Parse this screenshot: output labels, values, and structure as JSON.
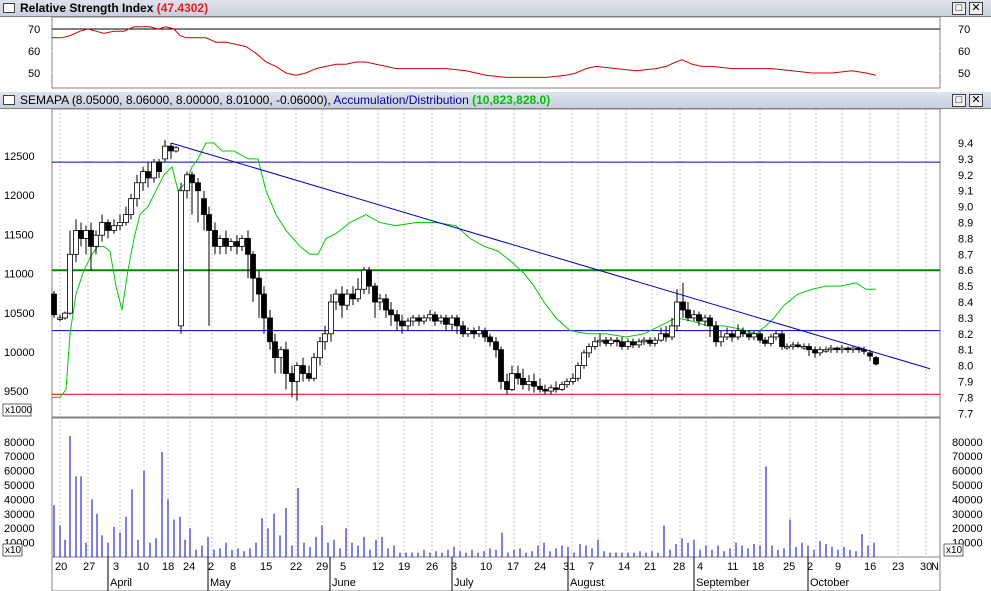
{
  "rsi": {
    "title": "Relative Strength Index",
    "value": "(47.4302)",
    "value_color": "#e02020",
    "left_ticks": [
      "70",
      "60",
      "50"
    ],
    "right_ticks": [
      "70",
      "60",
      "50"
    ]
  },
  "main": {
    "symbol": "SEMAPA",
    "ohlc": "(8.05000, 8.06000, 8.00000, 8.01000, -0.06000),",
    "indicator": "Accumulation/Distribution",
    "indicator_value": "(10,823,828.0)",
    "indicator_color": "#00c000",
    "left_ticks": [
      "12500",
      "12000",
      "11500",
      "11000",
      "10500",
      "10000",
      "9500"
    ],
    "left_multiplier": "x1000",
    "right_ticks": [
      "9.4",
      "9.3",
      "9.2",
      "9.1",
      "9.0",
      "8.9",
      "8.8",
      "8.7",
      "8.6",
      "8.5",
      "8.4",
      "8.3",
      "8.2",
      "8.1",
      "8.0",
      "7.9",
      "7.8",
      "7.7"
    ],
    "hlines": {
      "blue_top": 9.28,
      "green": 8.6,
      "blue_low": 8.22,
      "red": 7.82
    }
  },
  "volume": {
    "left_ticks": [
      "80000",
      "70000",
      "60000",
      "50000",
      "40000",
      "30000",
      "20000",
      "10000"
    ],
    "right_ticks": [
      "80000",
      "70000",
      "60000",
      "50000",
      "40000",
      "30000",
      "20000",
      "10000"
    ],
    "multiplier": "x10"
  },
  "xaxis": {
    "days": [
      "20",
      "27",
      "3",
      "10",
      "18",
      "24",
      "2",
      "8",
      "15",
      "22",
      "29",
      "5",
      "12",
      "19",
      "26",
      "3",
      "10",
      "17",
      "24",
      "31",
      "7",
      "14",
      "21",
      "28",
      "4",
      "11",
      "18",
      "25",
      "2",
      "9",
      "16",
      "23",
      "30",
      "N"
    ],
    "months": [
      "April",
      "May",
      "June",
      "July",
      "August",
      "September",
      "October"
    ]
  },
  "colors": {
    "rsi_line": "#d40000",
    "ad_line": "#00cc00",
    "trendline": "#0000c0",
    "hline_blue": "#0000c0",
    "hline_green": "#008800",
    "hline_red": "#e00000",
    "volume": "#0000c8",
    "grid": "#a0a0a0"
  }
}
